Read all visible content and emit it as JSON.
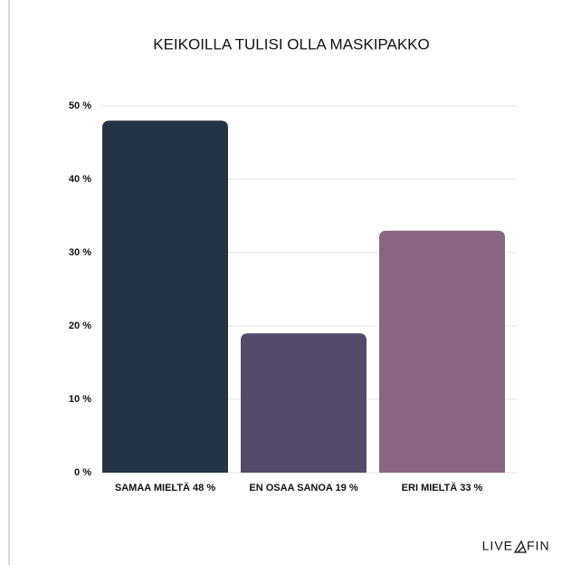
{
  "chart_data": {
    "type": "bar",
    "title": "KEIKOILLA TULISI OLLA MASKIPAKKO",
    "categories": [
      "SAMAA MIELTÄ 48 %",
      "EN OSAA SANOA 19 %",
      "ERI MIELTÄ 33 %"
    ],
    "values": [
      48,
      19,
      33
    ],
    "colors": [
      "#253444",
      "#524c6a",
      "#8a6680"
    ],
    "ylim": [
      0,
      50
    ],
    "yticks": [
      {
        "value": 0,
        "label": "0 %"
      },
      {
        "value": 10,
        "label": "10 %"
      },
      {
        "value": 20,
        "label": "20 %"
      },
      {
        "value": 30,
        "label": "30 %"
      },
      {
        "value": 40,
        "label": "40 %"
      },
      {
        "value": 50,
        "label": "50 %"
      }
    ],
    "grid": true
  },
  "brand": {
    "left": "LIVE",
    "right": "FIN"
  }
}
